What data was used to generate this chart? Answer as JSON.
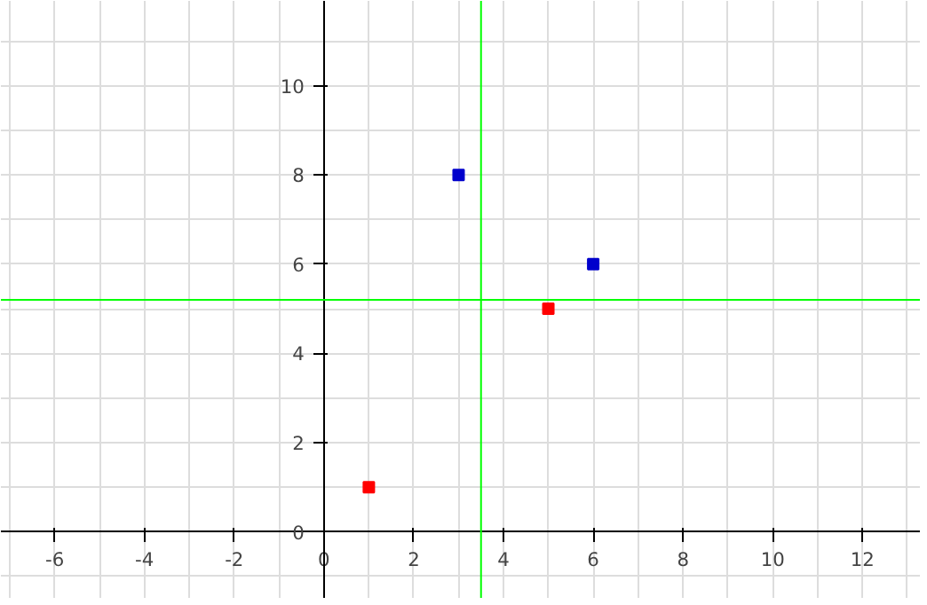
{
  "chart_data": {
    "type": "scatter",
    "series": [
      {
        "color": "#ff0000",
        "x": [
          1,
          5
        ],
        "values": [
          1,
          5
        ]
      },
      {
        "color": "#0000cc",
        "x": [
          3,
          6
        ],
        "values": [
          8,
          6
        ]
      }
    ],
    "marker": "square",
    "grid": true,
    "xlim": [
      -7.2,
      13.3
    ],
    "ylim": [
      -1.5,
      11.9
    ],
    "xticks": [
      -6,
      -4,
      -2,
      0,
      2,
      4,
      6,
      8,
      10,
      12
    ],
    "yticks": [
      0,
      2,
      4,
      6,
      8,
      10
    ],
    "ref_lines": [
      {
        "axis": "x",
        "value": 3.5,
        "color": "#00ff00"
      },
      {
        "axis": "y",
        "value": 5.2,
        "color": "#00ff00"
      }
    ]
  }
}
